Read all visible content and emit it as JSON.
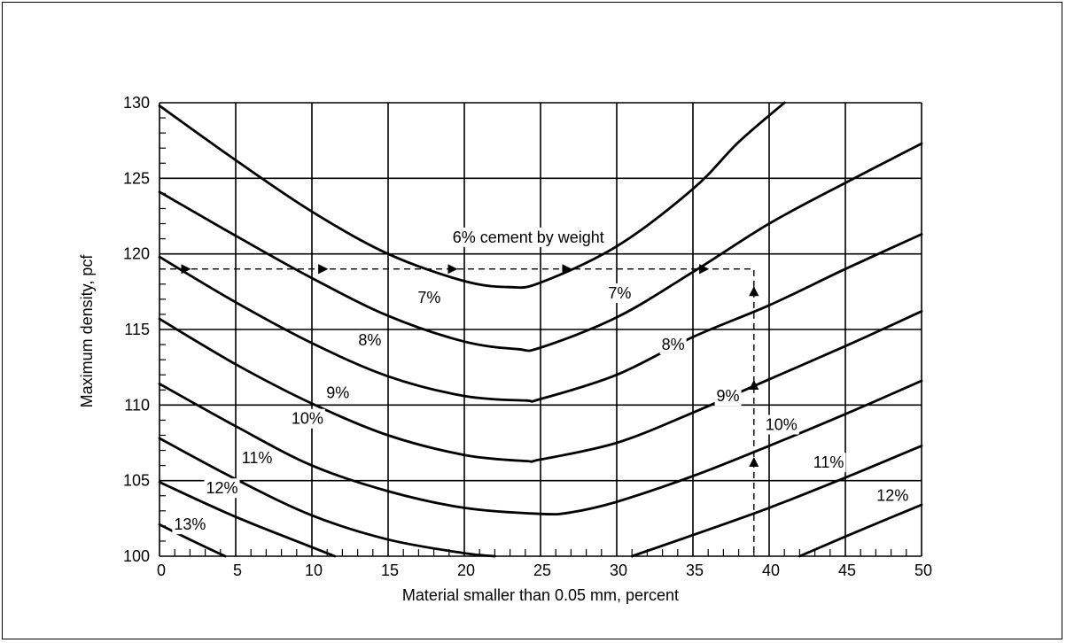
{
  "chart_data": {
    "type": "line",
    "title": "",
    "xlabel": "Material smaller than 0.05 mm, percent",
    "ylabel": "Maximum density, pcf",
    "xlim": [
      0,
      50
    ],
    "ylim": [
      100,
      130
    ],
    "x_ticks": [
      "0",
      "5",
      "10",
      "15",
      "20",
      "25",
      "30",
      "35",
      "40",
      "45",
      "50"
    ],
    "y_ticks": [
      "100",
      "105",
      "110",
      "115",
      "120",
      "125",
      "130"
    ],
    "grid": true,
    "series": [
      {
        "name": "6% cement by weight",
        "points": [
          [
            0,
            129.8
          ],
          [
            5,
            126.2
          ],
          [
            10,
            122.8
          ],
          [
            15,
            120.0
          ],
          [
            20,
            118.2
          ],
          [
            23,
            117.8
          ],
          [
            25,
            118.1
          ],
          [
            30,
            120.5
          ],
          [
            35,
            124.3
          ],
          [
            38,
            127.4
          ],
          [
            41,
            130.0
          ]
        ]
      },
      {
        "name": "7%",
        "points": [
          [
            0,
            124.1
          ],
          [
            5,
            121.2
          ],
          [
            10,
            118.4
          ],
          [
            15,
            115.9
          ],
          [
            20,
            114.2
          ],
          [
            23.5,
            113.7
          ],
          [
            25,
            113.8
          ],
          [
            30,
            115.8
          ],
          [
            35,
            118.8
          ],
          [
            40,
            122.0
          ],
          [
            45,
            124.7
          ],
          [
            50,
            127.3
          ]
        ]
      },
      {
        "name": "8%",
        "points": [
          [
            0,
            119.8
          ],
          [
            5,
            116.8
          ],
          [
            10,
            114.1
          ],
          [
            15,
            111.9
          ],
          [
            20,
            110.6
          ],
          [
            24,
            110.3
          ],
          [
            25,
            110.4
          ],
          [
            30,
            112.0
          ],
          [
            35,
            114.5
          ],
          [
            40,
            116.6
          ],
          [
            45,
            119.0
          ],
          [
            50,
            121.3
          ]
        ]
      },
      {
        "name": "9%",
        "points": [
          [
            0,
            115.7
          ],
          [
            5,
            112.7
          ],
          [
            10,
            110.1
          ],
          [
            15,
            108.0
          ],
          [
            20,
            106.7
          ],
          [
            24,
            106.3
          ],
          [
            25,
            106.4
          ],
          [
            30,
            107.5
          ],
          [
            35,
            109.5
          ],
          [
            40,
            111.7
          ],
          [
            45,
            113.9
          ],
          [
            50,
            116.2
          ]
        ]
      },
      {
        "name": "10%",
        "points": [
          [
            0,
            111.4
          ],
          [
            5,
            108.6
          ],
          [
            10,
            106.0
          ],
          [
            15,
            104.3
          ],
          [
            20,
            103.2
          ],
          [
            25,
            102.8
          ],
          [
            27,
            102.9
          ],
          [
            30,
            103.6
          ],
          [
            35,
            105.3
          ],
          [
            40,
            107.3
          ],
          [
            45,
            109.4
          ],
          [
            50,
            111.6
          ]
        ]
      },
      {
        "name": "11%",
        "points": [
          [
            0,
            107.8
          ],
          [
            5,
            105.1
          ],
          [
            10,
            102.7
          ],
          [
            15,
            101.1
          ],
          [
            20,
            100.2
          ],
          [
            22,
            100.0
          ]
        ]
      },
      {
        "name": "11% (right)",
        "points": [
          [
            31,
            100.0
          ],
          [
            35,
            101.4
          ],
          [
            40,
            103.2
          ],
          [
            45,
            105.2
          ],
          [
            50,
            107.3
          ]
        ]
      },
      {
        "name": "12%",
        "points": [
          [
            0,
            104.9
          ],
          [
            5,
            102.6
          ],
          [
            10,
            100.6
          ],
          [
            11.5,
            100.0
          ]
        ]
      },
      {
        "name": "12% (right)",
        "points": [
          [
            42,
            100.0
          ],
          [
            45,
            101.3
          ],
          [
            50,
            103.4
          ]
        ]
      },
      {
        "name": "13%",
        "points": [
          [
            0,
            102.1
          ],
          [
            2,
            101.1
          ],
          [
            4.3,
            100.0
          ]
        ]
      }
    ],
    "annotations": [
      {
        "text": "6% cement by weight",
        "x": 24.2,
        "y": 121.1
      },
      {
        "text": "7%",
        "x": 17.7,
        "y": 117.1
      },
      {
        "text": "7%",
        "x": 30.2,
        "y": 117.4
      },
      {
        "text": "8%",
        "x": 13.8,
        "y": 114.3
      },
      {
        "text": "8%",
        "x": 33.7,
        "y": 114.0
      },
      {
        "text": "9%",
        "x": 11.7,
        "y": 110.8
      },
      {
        "text": "9%",
        "x": 37.3,
        "y": 110.6
      },
      {
        "text": "10%",
        "x": 9.7,
        "y": 109.1
      },
      {
        "text": "10%",
        "x": 40.8,
        "y": 108.7
      },
      {
        "text": "11%",
        "x": 6.4,
        "y": 106.5
      },
      {
        "text": "11%",
        "x": 43.9,
        "y": 106.2
      },
      {
        "text": "12%",
        "x": 4.1,
        "y": 104.5
      },
      {
        "text": "12%",
        "x": 48.1,
        "y": 104.0
      },
      {
        "text": "13%",
        "x": 2.0,
        "y": 102.1
      }
    ],
    "example_path": [
      [
        0,
        119
      ],
      [
        39,
        119
      ],
      [
        39,
        100
      ]
    ]
  }
}
